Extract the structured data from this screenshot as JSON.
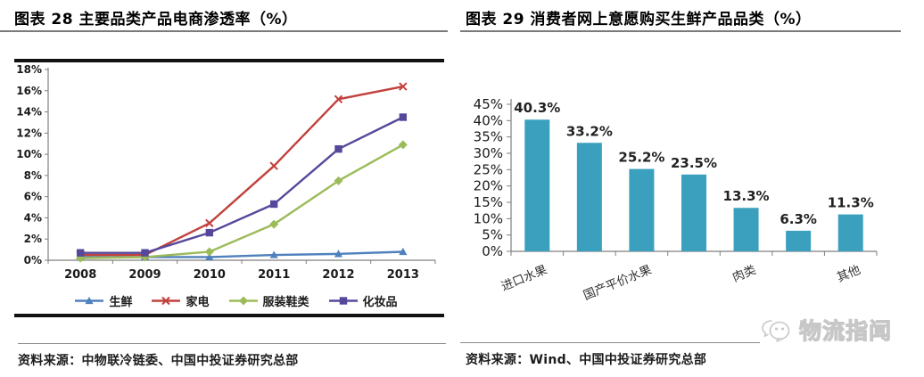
{
  "left_panel": {
    "title": "图表 28 主要品类产品电商渗透率（%）",
    "source": "资料来源：中物联冷链委、中国中投证券研究总部"
  },
  "right_panel": {
    "title": "图表 29 消费者网上意愿购买生鲜产品品类（%）",
    "source": "资料来源：Wind、中国中投证券研究总部"
  },
  "watermark_text": "物流指闻",
  "chart_data": [
    {
      "type": "line",
      "title": "主要品类产品电商渗透率（%）",
      "x": [
        "2008",
        "2009",
        "2010",
        "2011",
        "2012",
        "2013"
      ],
      "series": [
        {
          "name": "生鲜",
          "color": "#4F81BD",
          "marker": "triangle",
          "values": [
            0.3,
            0.3,
            0.3,
            0.5,
            0.6,
            0.8
          ]
        },
        {
          "name": "家电",
          "color": "#C2413C",
          "marker": "x",
          "values": [
            0.5,
            0.5,
            3.5,
            8.9,
            15.2,
            16.4
          ]
        },
        {
          "name": "服装鞋类",
          "color": "#9BBB59",
          "marker": "diamond",
          "values": [
            0.2,
            0.3,
            0.8,
            3.4,
            7.5,
            10.9
          ]
        },
        {
          "name": "化妆品",
          "color": "#55489B",
          "marker": "square",
          "values": [
            0.7,
            0.7,
            2.6,
            5.3,
            10.5,
            13.5
          ]
        }
      ],
      "ylim": [
        0,
        18
      ],
      "yticks": [
        "0%",
        "2%",
        "4%",
        "6%",
        "8%",
        "10%",
        "12%",
        "14%",
        "16%",
        "18%"
      ],
      "grid": false,
      "legend_position": "bottom",
      "axis_color": "#7f7f7f"
    },
    {
      "type": "bar",
      "title": "消费者网上意愿购买生鲜产品品类（%）",
      "categories": [
        "进口水果",
        "",
        "国产平价水果",
        "",
        "肉类",
        "",
        "其他"
      ],
      "values": [
        40.3,
        33.2,
        25.2,
        23.5,
        13.3,
        6.3,
        11.3
      ],
      "data_labels": [
        "40.3%",
        "33.2%",
        "25.2%",
        "23.5%",
        "13.3%",
        "6.3%",
        "11.3%"
      ],
      "bar_color": "#3BA0BD",
      "ylim": [
        0,
        45
      ],
      "yticks": [
        "0%",
        "5%",
        "10%",
        "15%",
        "20%",
        "25%",
        "30%",
        "35%",
        "40%",
        "45%"
      ],
      "grid": false,
      "legend_position": "none",
      "axis_color": "#7f7f7f"
    }
  ]
}
